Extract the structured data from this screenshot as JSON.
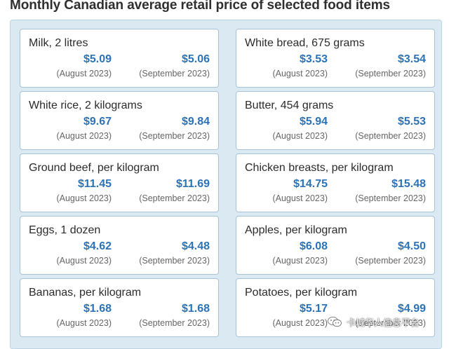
{
  "title": "Monthly Canadian average retail price of selected food items",
  "items": [
    {
      "name": "Milk, 2 litres",
      "aug_price": "$5.09",
      "sep_price": "$5.06",
      "aug_label": "(August 2023)",
      "sep_label": "(September 2023)"
    },
    {
      "name": "White bread, 675 grams",
      "aug_price": "$3.53",
      "sep_price": "$3.54",
      "aug_label": "(August 2023)",
      "sep_label": "(September 2023)"
    },
    {
      "name": "White rice, 2 kilograms",
      "aug_price": "$9.67",
      "sep_price": "$9.84",
      "aug_label": "(August 2023)",
      "sep_label": "(September 2023)"
    },
    {
      "name": "Butter, 454 grams",
      "aug_price": "$5.94",
      "sep_price": "$5.53",
      "aug_label": "(August 2023)",
      "sep_label": "(September 2023)"
    },
    {
      "name": "Ground beef, per kilogram",
      "aug_price": "$11.45",
      "sep_price": "$11.69",
      "aug_label": "(August 2023)",
      "sep_label": "(September 2023)"
    },
    {
      "name": "Chicken breasts, per kilogram",
      "aug_price": "$14.75",
      "sep_price": "$15.48",
      "aug_label": "(August 2023)",
      "sep_label": "(September 2023)"
    },
    {
      "name": "Eggs, 1 dozen",
      "aug_price": "$4.62",
      "sep_price": "$4.48",
      "aug_label": "(August 2023)",
      "sep_label": "(September 2023)"
    },
    {
      "name": "Apples, per kilogram",
      "aug_price": "$6.08",
      "sep_price": "$4.50",
      "aug_label": "(August 2023)",
      "sep_label": "(September 2023)"
    },
    {
      "name": "Bananas, per kilogram",
      "aug_price": "$1.68",
      "sep_price": "$1.68",
      "aug_label": "(August 2023)",
      "sep_label": "(September 2023)"
    },
    {
      "name": "Potatoes, per kilogram",
      "aug_price": "$5.17",
      "sep_price": "$4.99",
      "aug_label": "(August 2023)",
      "sep_label": "(September 2023)"
    }
  ],
  "watermark": {
    "text": "卡城华人信息平台",
    "icon": "wechat-icon"
  },
  "colors": {
    "price": "#2b73b6",
    "panel": "#dbe9f3",
    "card_border": "#a9c3d6"
  }
}
